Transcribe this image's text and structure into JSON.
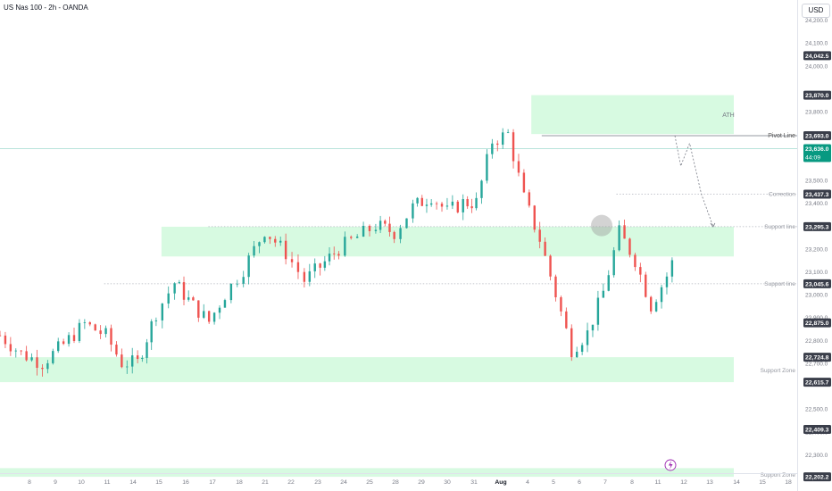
{
  "header": {
    "title": "US Nas 100 - 2h - OANDA",
    "currency": "USD"
  },
  "chart_data": {
    "type": "candlestick",
    "ylim": [
      22180,
      24240
    ],
    "y_ticks": [
      24200,
      24100,
      24000,
      23800,
      23700,
      23500,
      23400,
      23200,
      23100,
      23000,
      22900,
      22800,
      22700,
      22500,
      22400,
      22300
    ],
    "x_ticks": [
      {
        "label": "8",
        "x": 33
      },
      {
        "label": "9",
        "x": 62
      },
      {
        "label": "10",
        "x": 91
      },
      {
        "label": "11",
        "x": 120
      },
      {
        "label": "14",
        "x": 149
      },
      {
        "label": "15",
        "x": 178
      },
      {
        "label": "16",
        "x": 208
      },
      {
        "label": "17",
        "x": 238
      },
      {
        "label": "18",
        "x": 268
      },
      {
        "label": "21",
        "x": 297
      },
      {
        "label": "22",
        "x": 326
      },
      {
        "label": "23",
        "x": 356
      },
      {
        "label": "24",
        "x": 385
      },
      {
        "label": "25",
        "x": 414
      },
      {
        "label": "28",
        "x": 443
      },
      {
        "label": "29",
        "x": 472
      },
      {
        "label": "30",
        "x": 501
      },
      {
        "label": "31",
        "x": 531
      },
      {
        "label": "Aug",
        "x": 561
      },
      {
        "label": "4",
        "x": 591
      },
      {
        "label": "5",
        "x": 620
      },
      {
        "label": "6",
        "x": 649
      },
      {
        "label": "7",
        "x": 678
      },
      {
        "label": "8",
        "x": 708
      },
      {
        "label": "11",
        "x": 737
      },
      {
        "label": "12",
        "x": 766
      },
      {
        "label": "13",
        "x": 795
      },
      {
        "label": "14",
        "x": 825
      },
      {
        "label": "15",
        "x": 854
      },
      {
        "label": "18",
        "x": 883
      }
    ],
    "price_badges": [
      {
        "label": "24,042.5",
        "value": 24042.5,
        "color": "#3a3e4a"
      },
      {
        "label": "23,870.0",
        "value": 23870,
        "color": "#3a3e4a"
      },
      {
        "label": "23,693.0",
        "value": 23693,
        "color": "#3a3e4a"
      },
      {
        "label": "23,636.0",
        "sub": "44:09",
        "value": 23636,
        "color": "#089981"
      },
      {
        "label": "23,437.3",
        "value": 23437.3,
        "color": "#3a3e4a"
      },
      {
        "label": "23,295.3",
        "value": 23295.3,
        "color": "#3a3e4a"
      },
      {
        "label": "23,045.6",
        "value": 23045.6,
        "color": "#3a3e4a"
      },
      {
        "label": "22,875.0",
        "value": 22875,
        "color": "#3a3e4a"
      },
      {
        "label": "22,724.8",
        "value": 22724.8,
        "color": "#3a3e4a"
      },
      {
        "label": "22,615.7",
        "value": 22615.7,
        "color": "#3a3e4a"
      },
      {
        "label": "22,409.3",
        "value": 22409.3,
        "color": "#3a3e4a"
      },
      {
        "label": "22,202.2",
        "value": 22202.2,
        "color": "#3a3e4a"
      }
    ],
    "zones": [
      {
        "y_top": 23870,
        "y_bottom": 23700,
        "x_start_day": 30.6,
        "x_end_day": 43.5
      },
      {
        "y_top": 23295,
        "y_bottom": 23165,
        "x_start_day": 9.3,
        "x_end_day": 43.5
      },
      {
        "y_top": 22724.8,
        "y_bottom": 22615.7,
        "x_start_day": 0,
        "x_end_day": 43.5
      },
      {
        "y_top": 22240,
        "y_bottom": 22202.2,
        "x_start_day": 0,
        "x_end_day": 43.5
      }
    ],
    "levels": [
      {
        "label": "Pivot Line",
        "value": 23693,
        "style": "solid",
        "x_start_day": 31.2
      },
      {
        "label": "Correction",
        "value": 23437.3,
        "style": "dotted",
        "x_start_day": 35.5
      },
      {
        "label": "Support line",
        "value": 23295.3,
        "style": "dotted",
        "x_start_day": 12.0
      },
      {
        "label": "Support line",
        "value": 23045.6,
        "style": "dotted",
        "x_start_day": 6.0
      },
      {
        "label": "Support Zone",
        "value": 22670,
        "style": "none",
        "x_start_day": 0
      },
      {
        "label": "Support Zone",
        "value": 22215,
        "style": "none",
        "x_start_day": 0
      }
    ],
    "annotations": [
      {
        "label": "ATH",
        "value": 23790,
        "x": 816
      }
    ],
    "current_price_line": 23636,
    "projection": [
      [
        43.2,
        23693
      ],
      [
        43.6,
        23560
      ],
      [
        44.2,
        23660
      ],
      [
        45.0,
        23437
      ],
      [
        45.8,
        23295
      ]
    ],
    "highlight_circle": {
      "x": 674,
      "value": 23300
    },
    "price_path_days": [
      0,
      1,
      2,
      3,
      4,
      5,
      6,
      7,
      8,
      9,
      10,
      11,
      12,
      13,
      14,
      15,
      16,
      17,
      18,
      19,
      20,
      21,
      22,
      23,
      24,
      25,
      26,
      27,
      28,
      29,
      30,
      31,
      32,
      33,
      34,
      35,
      36,
      37,
      38,
      39,
      40,
      41,
      42,
      43
    ],
    "price_path": [
      [
        0.0,
        22820
      ],
      [
        0.8,
        22740
      ],
      [
        1.6,
        22700
      ],
      [
        2.4,
        22780
      ],
      [
        3.2,
        22870
      ],
      [
        4.0,
        22820
      ],
      [
        4.6,
        22700
      ],
      [
        5.2,
        22700
      ],
      [
        5.9,
        22920
      ],
      [
        6.6,
        23050
      ],
      [
        7.3,
        22950
      ],
      [
        7.9,
        22880
      ],
      [
        8.5,
        23000
      ],
      [
        9.2,
        23110
      ],
      [
        10.0,
        23280
      ],
      [
        10.8,
        23180
      ],
      [
        11.5,
        23060
      ],
      [
        12.1,
        23120
      ],
      [
        12.8,
        23200
      ],
      [
        13.5,
        23250
      ],
      [
        14.2,
        23300
      ],
      [
        14.9,
        23270
      ],
      [
        15.6,
        23380
      ],
      [
        16.3,
        23430
      ],
      [
        16.9,
        23360
      ],
      [
        17.5,
        23400
      ],
      [
        18.0,
        23400
      ],
      [
        18.6,
        23670
      ],
      [
        19.2,
        23700
      ],
      [
        19.8,
        23420
      ],
      [
        20.4,
        23240
      ],
      [
        21.0,
        23000
      ],
      [
        21.6,
        22760
      ],
      [
        22.2,
        22830
      ],
      [
        22.8,
        23010
      ],
      [
        23.4,
        23270
      ],
      [
        24.0,
        23150
      ],
      [
        24.6,
        22950
      ],
      [
        25.2,
        23080
      ],
      [
        25.8,
        23250
      ],
      [
        26.4,
        23380
      ],
      [
        27.0,
        23480
      ],
      [
        27.6,
        23420
      ],
      [
        28.3,
        23600
      ],
      [
        28.9,
        23660
      ],
      [
        29.4,
        23620
      ]
    ]
  }
}
